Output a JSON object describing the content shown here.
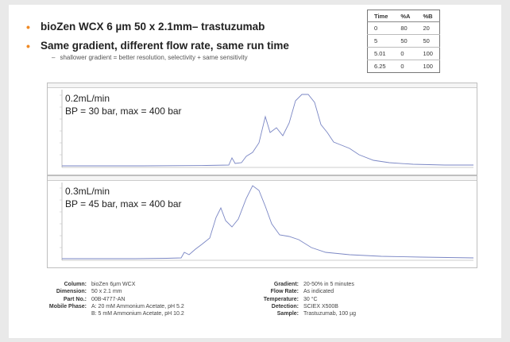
{
  "slide": {
    "bullets": [
      {
        "text": "bioZen WCX 6 µm 50 x 2.1mm– trastuzumab"
      },
      {
        "text": "Same gradient, different flow rate, same run time"
      }
    ],
    "sub_bullet": "shallower gradient = better resolution, selectivity + same sensitivity"
  },
  "gradient_table": {
    "headers": [
      "Time",
      "%A",
      "%B"
    ],
    "rows": [
      [
        "0",
        "80",
        "20"
      ],
      [
        "5",
        "50",
        "50"
      ],
      [
        "5.01",
        "0",
        "100"
      ],
      [
        "6.25",
        "0",
        "100"
      ]
    ]
  },
  "chromatograms": [
    {
      "flow": "0.2mL/min",
      "pressure": "BP = 30 bar, max = 400 bar"
    },
    {
      "flow": "0.3mL/min",
      "pressure": "BP = 45 bar, max = 400 bar"
    }
  ],
  "conditions": {
    "left": [
      {
        "label": "Column:",
        "value": "bioZen 6µm WCX"
      },
      {
        "label": "Dimension:",
        "value": "50 x 2.1 mm"
      },
      {
        "label": "Part No.:",
        "value": "00B-4777-AN"
      },
      {
        "label": "Mobile Phase:",
        "value": "A: 20 mM Ammonium Acetate, pH 5.2"
      }
    ],
    "mobile_phase_b": "B: 5 mM Ammonium Acetate, pH 10.2",
    "right": [
      {
        "label": "Gradient:",
        "value": "20-50% in 5 minutes"
      },
      {
        "label": "Flow Rate:",
        "value": "As indicated"
      },
      {
        "label": "Temperature:",
        "value": "30 °C"
      },
      {
        "label": "Detection:",
        "value": "SCIEX X500B"
      },
      {
        "label": "Sample:",
        "value": "Trastuzumab, 100 µg"
      }
    ]
  },
  "colors": {
    "bullet": "#f08a24",
    "trace": "#7a86c4"
  }
}
